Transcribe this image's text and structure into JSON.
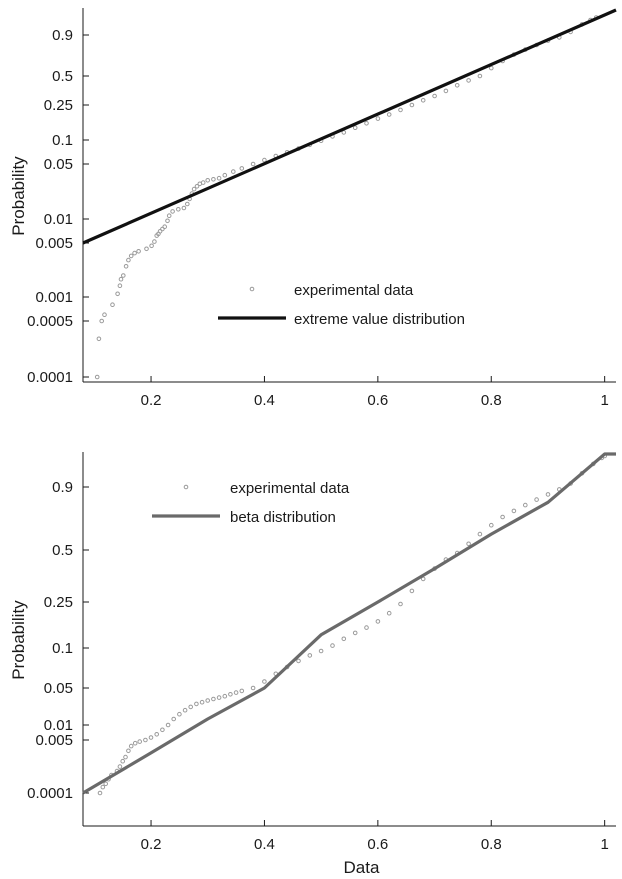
{
  "chart_data": [
    {
      "type": "scatter",
      "title": "",
      "xlabel": "",
      "ylabel": "Probability",
      "x_range": [
        0.08,
        1.02
      ],
      "x_ticks": [
        0.2,
        0.4,
        0.6,
        0.8,
        1
      ],
      "x_tick_labels": [
        "0.2",
        "0.4",
        "0.6",
        "0.8",
        "1"
      ],
      "y_scale": "probability (extreme value)",
      "y_range": [
        5e-05,
        0.99
      ],
      "y_ticks": [
        0.0001,
        0.0005,
        0.001,
        0.005,
        0.01,
        0.05,
        0.1,
        0.25,
        0.5,
        0.9
      ],
      "y_tick_labels": [
        "0.0001",
        "0.0005",
        "0.001",
        "0.005",
        "0.01",
        "0.05",
        "0.1",
        "0.25",
        "0.5",
        "0.9"
      ],
      "legend_position": "center-right",
      "series": [
        {
          "name": "experimental data",
          "kind": "markers",
          "color": "#9a9a9a",
          "points": [
            [
              0.105,
              0.0001
            ],
            [
              0.108,
              0.0003
            ],
            [
              0.113,
              0.0005
            ],
            [
              0.118,
              0.0006
            ],
            [
              0.132,
              0.0008
            ],
            [
              0.141,
              0.0011
            ],
            [
              0.145,
              0.0014
            ],
            [
              0.147,
              0.0017
            ],
            [
              0.151,
              0.0019
            ],
            [
              0.156,
              0.0025
            ],
            [
              0.16,
              0.003
            ],
            [
              0.165,
              0.0034
            ],
            [
              0.171,
              0.0037
            ],
            [
              0.178,
              0.0039
            ],
            [
              0.192,
              0.0042
            ],
            [
              0.201,
              0.0046
            ],
            [
              0.206,
              0.0052
            ],
            [
              0.21,
              0.0062
            ],
            [
              0.213,
              0.0065
            ],
            [
              0.216,
              0.007
            ],
            [
              0.22,
              0.0075
            ],
            [
              0.224,
              0.008
            ],
            [
              0.229,
              0.0095
            ],
            [
              0.232,
              0.011
            ],
            [
              0.238,
              0.0125
            ],
            [
              0.248,
              0.0133
            ],
            [
              0.258,
              0.0138
            ],
            [
              0.264,
              0.0155
            ],
            [
              0.268,
              0.018
            ],
            [
              0.272,
              0.021
            ],
            [
              0.276,
              0.024
            ],
            [
              0.281,
              0.026
            ],
            [
              0.286,
              0.028
            ],
            [
              0.292,
              0.029
            ],
            [
              0.3,
              0.031
            ],
            [
              0.31,
              0.032
            ],
            [
              0.32,
              0.033
            ],
            [
              0.33,
              0.036
            ],
            [
              0.345,
              0.04
            ],
            [
              0.36,
              0.044
            ],
            [
              0.38,
              0.05
            ],
            [
              0.4,
              0.056
            ],
            [
              0.42,
              0.063
            ],
            [
              0.44,
              0.07
            ],
            [
              0.46,
              0.078
            ],
            [
              0.48,
              0.087
            ],
            [
              0.5,
              0.098
            ],
            [
              0.52,
              0.11
            ],
            [
              0.54,
              0.122
            ],
            [
              0.56,
              0.138
            ],
            [
              0.58,
              0.155
            ],
            [
              0.6,
              0.175
            ],
            [
              0.62,
              0.195
            ],
            [
              0.64,
              0.22
            ],
            [
              0.66,
              0.25
            ],
            [
              0.68,
              0.28
            ],
            [
              0.7,
              0.31
            ],
            [
              0.72,
              0.35
            ],
            [
              0.74,
              0.4
            ],
            [
              0.76,
              0.45
            ],
            [
              0.78,
              0.5
            ],
            [
              0.8,
              0.56
            ],
            [
              0.82,
              0.62
            ],
            [
              0.84,
              0.68
            ],
            [
              0.86,
              0.73
            ],
            [
              0.88,
              0.78
            ],
            [
              0.9,
              0.83
            ],
            [
              0.92,
              0.87
            ],
            [
              0.94,
              0.91
            ],
            [
              0.96,
              0.935
            ],
            [
              0.975,
              0.95
            ],
            [
              0.985,
              0.96
            ]
          ]
        },
        {
          "name": "extreme value distribution",
          "kind": "line",
          "color": "#111111",
          "points": [
            [
              0.08,
              0.005
            ],
            [
              1.02,
              0.99
            ]
          ]
        }
      ]
    },
    {
      "type": "scatter",
      "title": "",
      "xlabel": "Data",
      "ylabel": "Probability",
      "x_range": [
        0.08,
        1.02
      ],
      "x_ticks": [
        0.2,
        0.4,
        0.6,
        0.8,
        1
      ],
      "x_tick_labels": [
        "0.2",
        "0.4",
        "0.6",
        "0.8",
        "1"
      ],
      "y_scale": "probability (beta)",
      "y_range": [
        5e-05,
        0.99
      ],
      "y_ticks": [
        0.0001,
        0.005,
        0.01,
        0.05,
        0.1,
        0.25,
        0.5,
        0.9
      ],
      "y_tick_labels": [
        "0.0001",
        "0.005",
        "0.01",
        "0.05",
        "0.1",
        "0.25",
        "0.5",
        "0.9"
      ],
      "legend_position": "top-left",
      "series": [
        {
          "name": "experimental data",
          "kind": "markers",
          "color": "#9a9a9a",
          "points": [
            [
              0.11,
              0.0001
            ],
            [
              0.115,
              0.00018
            ],
            [
              0.12,
              0.00025
            ],
            [
              0.125,
              0.0004
            ],
            [
              0.13,
              0.0006
            ],
            [
              0.14,
              0.0009
            ],
            [
              0.145,
              0.0012
            ],
            [
              0.15,
              0.0016
            ],
            [
              0.155,
              0.002
            ],
            [
              0.16,
              0.0028
            ],
            [
              0.165,
              0.0036
            ],
            [
              0.172,
              0.0042
            ],
            [
              0.18,
              0.0046
            ],
            [
              0.19,
              0.005
            ],
            [
              0.2,
              0.0056
            ],
            [
              0.21,
              0.0065
            ],
            [
              0.22,
              0.008
            ],
            [
              0.23,
              0.01
            ],
            [
              0.24,
              0.013
            ],
            [
              0.25,
              0.016
            ],
            [
              0.26,
              0.019
            ],
            [
              0.27,
              0.022
            ],
            [
              0.28,
              0.025
            ],
            [
              0.29,
              0.027
            ],
            [
              0.3,
              0.029
            ],
            [
              0.31,
              0.031
            ],
            [
              0.32,
              0.033
            ],
            [
              0.33,
              0.035
            ],
            [
              0.34,
              0.038
            ],
            [
              0.35,
              0.041
            ],
            [
              0.36,
              0.044
            ],
            [
              0.38,
              0.05
            ],
            [
              0.4,
              0.056
            ],
            [
              0.42,
              0.064
            ],
            [
              0.44,
              0.072
            ],
            [
              0.46,
              0.08
            ],
            [
              0.48,
              0.088
            ],
            [
              0.5,
              0.095
            ],
            [
              0.52,
              0.105
            ],
            [
              0.54,
              0.12
            ],
            [
              0.56,
              0.135
            ],
            [
              0.58,
              0.15
            ],
            [
              0.6,
              0.17
            ],
            [
              0.62,
              0.2
            ],
            [
              0.64,
              0.24
            ],
            [
              0.66,
              0.29
            ],
            [
              0.68,
              0.34
            ],
            [
              0.7,
              0.39
            ],
            [
              0.72,
              0.44
            ],
            [
              0.74,
              0.48
            ],
            [
              0.76,
              0.53
            ],
            [
              0.78,
              0.58
            ],
            [
              0.8,
              0.63
            ],
            [
              0.82,
              0.68
            ],
            [
              0.84,
              0.72
            ],
            [
              0.86,
              0.76
            ],
            [
              0.88,
              0.8
            ],
            [
              0.9,
              0.84
            ],
            [
              0.92,
              0.88
            ],
            [
              0.94,
              0.91
            ],
            [
              0.96,
              0.94
            ],
            [
              0.98,
              0.965
            ],
            [
              0.995,
              0.98
            ],
            [
              1.0,
              0.985
            ]
          ]
        },
        {
          "name": "beta distribution",
          "kind": "line",
          "color": "#6a6a6a",
          "points": [
            [
              0.08,
              0.0001
            ],
            [
              0.2,
              0.0025
            ],
            [
              0.3,
              0.013
            ],
            [
              0.4,
              0.05
            ],
            [
              0.5,
              0.13
            ],
            [
              0.6,
              0.25
            ],
            [
              0.7,
              0.39
            ],
            [
              0.8,
              0.58
            ],
            [
              0.9,
              0.78
            ],
            [
              1.0,
              0.99
            ],
            [
              1.02,
              0.99
            ]
          ]
        }
      ]
    }
  ]
}
